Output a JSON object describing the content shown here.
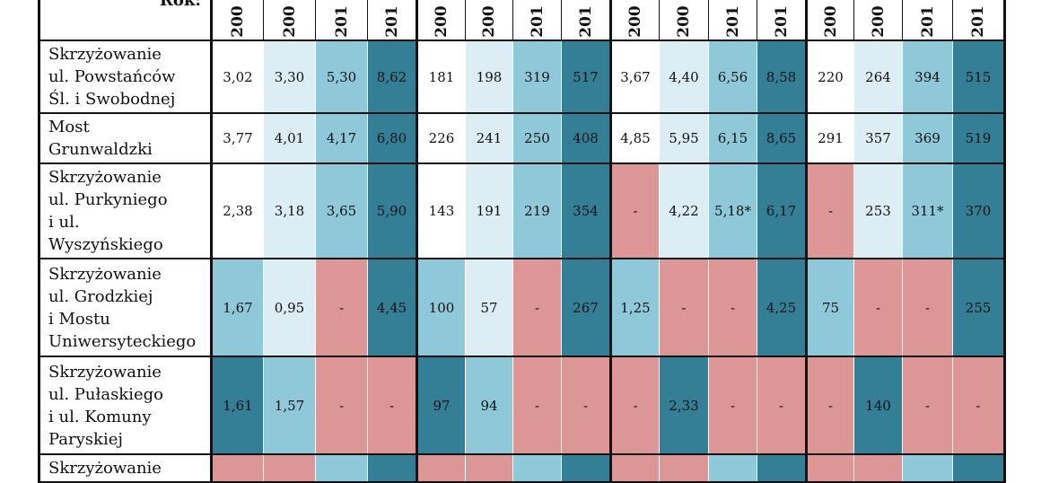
{
  "header": {
    "label": "Rok:",
    "years": [
      "200",
      "200",
      "201",
      "201",
      "200",
      "200",
      "201",
      "201",
      "200",
      "200",
      "201",
      "201",
      "200",
      "200",
      "201",
      "201"
    ]
  },
  "colors": {
    "white": "#ffffff",
    "light": "#dcedf4",
    "medium": "#8fc9d9",
    "dark": "#347f95",
    "missing": "#dc9696"
  },
  "rows": [
    {
      "location": [
        "Skrzyżowanie",
        "ul. Powstańców",
        "Śl. i Swobodnej"
      ],
      "values": [
        "3,02",
        "3,30",
        "5,30",
        "8,62",
        "181",
        "198",
        "319",
        "517",
        "3,67",
        "4,40",
        "6,56",
        "8,58",
        "220",
        "264",
        "394",
        "515"
      ],
      "levels": [
        "white",
        "light",
        "medium",
        "dark",
        "white",
        "light",
        "medium",
        "dark",
        "white",
        "light",
        "medium",
        "dark",
        "white",
        "light",
        "medium",
        "dark"
      ]
    },
    {
      "location": [
        "Most",
        "Grunwaldzki"
      ],
      "values": [
        "3,77",
        "4,01",
        "4,17",
        "6,80",
        "226",
        "241",
        "250",
        "408",
        "4,85",
        "5,95",
        "6,15",
        "8,65",
        "291",
        "357",
        "369",
        "519"
      ],
      "levels": [
        "white",
        "light",
        "medium",
        "dark",
        "white",
        "light",
        "medium",
        "dark",
        "white",
        "light",
        "medium",
        "dark",
        "white",
        "light",
        "medium",
        "dark"
      ]
    },
    {
      "location": [
        "Skrzyżowanie",
        "ul. Purkyniego",
        "i ul.",
        "Wyszyńskiego"
      ],
      "values": [
        "2,38",
        "3,18",
        "3,65",
        "5,90",
        "143",
        "191",
        "219",
        "354",
        "-",
        "4,22",
        "5,18*",
        "6,17",
        "-",
        "253",
        "311*",
        "370"
      ],
      "levels": [
        "white",
        "light",
        "medium",
        "dark",
        "white",
        "light",
        "medium",
        "dark",
        "missing",
        "light",
        "medium",
        "dark",
        "missing",
        "light",
        "medium",
        "dark"
      ]
    },
    {
      "location": [
        "Skrzyżowanie",
        "ul. Grodzkiej",
        "i Mostu",
        "Uniwersyteckiego"
      ],
      "values": [
        "1,67",
        "0,95",
        "-",
        "4,45",
        "100",
        "57",
        "-",
        "267",
        "1,25",
        "-",
        "-",
        "4,25",
        "75",
        "-",
        "-",
        "255"
      ],
      "levels": [
        "medium",
        "light",
        "missing",
        "dark",
        "medium",
        "light",
        "missing",
        "dark",
        "medium",
        "missing",
        "missing",
        "dark",
        "medium",
        "missing",
        "missing",
        "dark"
      ]
    },
    {
      "location": [
        "Skrzyżowanie",
        "ul. Pułaskiego",
        "i ul. Komuny",
        "Paryskiej"
      ],
      "values": [
        "1,61",
        "1,57",
        "-",
        "-",
        "97",
        "94",
        "-",
        "-",
        "-",
        "2,33",
        "-",
        "-",
        "-",
        "140",
        "-",
        "-"
      ],
      "levels": [
        "dark",
        "medium",
        "missing",
        "missing",
        "dark",
        "medium",
        "missing",
        "missing",
        "missing",
        "dark",
        "missing",
        "missing",
        "missing",
        "dark",
        "missing",
        "missing"
      ]
    },
    {
      "location": [
        "Skrzyżowanie"
      ],
      "values": [
        "",
        "",
        "",
        "",
        "",
        "",
        "",
        "",
        "",
        "",
        "",
        "",
        "",
        "",
        "",
        ""
      ],
      "levels": [
        "missing",
        "missing",
        "medium",
        "dark",
        "missing",
        "missing",
        "medium",
        "dark",
        "missing",
        "missing",
        "medium",
        "dark",
        "missing",
        "missing",
        "medium",
        "dark"
      ]
    }
  ]
}
